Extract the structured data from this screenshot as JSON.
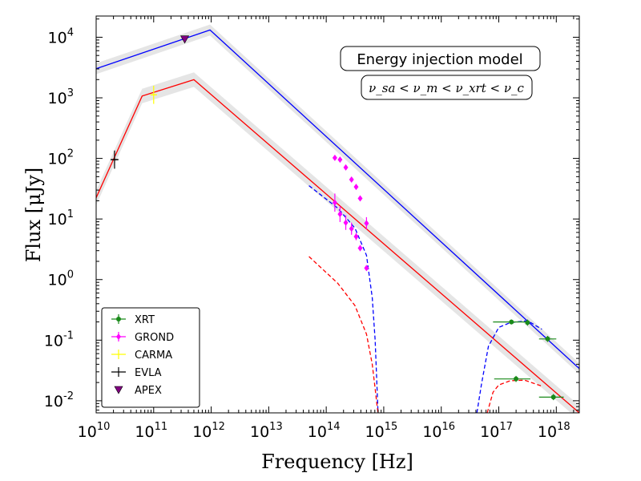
{
  "chart_data": {
    "type": "line",
    "title": "",
    "xlabel": "Frequency [Hz]",
    "ylabel": "Flux [μJy]",
    "xscale": "log",
    "yscale": "log",
    "xlim_log10": [
      10,
      18.4
    ],
    "ylim_log10": [
      -2.2,
      4.35
    ],
    "annotations": [
      {
        "text": "Energy injection model",
        "style": "boxed"
      },
      {
        "text": "ν_sa < ν_m < ν_xrt < ν_c",
        "style": "boxed-math"
      }
    ],
    "legend": {
      "position": "lower-left",
      "entries": [
        {
          "label": "XRT",
          "color": "#1a8a1a",
          "marker": "errorbar-circle"
        },
        {
          "label": "GROND",
          "color": "#ff00ff",
          "marker": "errorbar-diamond"
        },
        {
          "label": "CARMA",
          "color": "#ffff00",
          "marker": "errorbar-plus"
        },
        {
          "label": "EVLA",
          "color": "#000000",
          "marker": "errorbar-plus"
        },
        {
          "label": "APEX",
          "color": "#800080",
          "marker": "triangle-down"
        }
      ]
    },
    "series": [
      {
        "name": "blue model",
        "color": "#0000ff",
        "style": "solid",
        "x_log10": [
          10,
          11.98,
          18.4
        ],
        "y_log10": [
          3.48,
          4.12,
          -1.47
        ],
        "band": 0.09
      },
      {
        "name": "red model",
        "color": "#ff0000",
        "style": "solid",
        "x_log10": [
          10,
          10.8,
          11.7,
          18.4
        ],
        "y_log10": [
          1.35,
          3.03,
          3.3,
          -2.2
        ],
        "band": 0.12
      },
      {
        "name": "blue absorbed optical",
        "color": "#0000ff",
        "style": "dashed",
        "x_log10": [
          13.7,
          14.2,
          14.5,
          14.7,
          14.8,
          14.85,
          14.88,
          14.9
        ],
        "y_log10": [
          1.55,
          1.18,
          0.85,
          0.4,
          -0.3,
          -1.0,
          -1.7,
          -2.2
        ]
      },
      {
        "name": "red absorbed optical",
        "color": "#ff0000",
        "style": "dashed",
        "x_log10": [
          13.7,
          14.2,
          14.5,
          14.7,
          14.8,
          14.85,
          14.88,
          14.9
        ],
        "y_log10": [
          0.38,
          -0.06,
          -0.43,
          -0.9,
          -1.4,
          -1.8,
          -2.05,
          -2.2
        ]
      },
      {
        "name": "blue absorbed X-ray",
        "color": "#0000ff",
        "style": "dashed",
        "x_log10": [
          16.62,
          16.7,
          16.82,
          17.0,
          17.2,
          17.5,
          17.75
        ],
        "y_log10": [
          -2.2,
          -1.72,
          -1.1,
          -0.79,
          -0.71,
          -0.68,
          -0.82
        ]
      },
      {
        "name": "red absorbed X-ray",
        "color": "#ff0000",
        "style": "dashed",
        "x_log10": [
          16.8,
          16.9,
          17.0,
          17.2,
          17.45,
          17.75
        ],
        "y_log10": [
          -2.2,
          -1.86,
          -1.74,
          -1.67,
          -1.66,
          -1.76
        ]
      }
    ],
    "points": {
      "XRT": [
        {
          "x_log10": 17.22,
          "y_log10": -0.7,
          "xerr_log10": [
            0.32,
            0.28
          ],
          "yerr_log10": 0.04
        },
        {
          "x_log10": 17.5,
          "y_log10": -0.71,
          "xerr_log10": [
            0.0,
            0.0
          ],
          "yerr_log10": 0.05
        },
        {
          "x_log10": 17.85,
          "y_log10": -0.98,
          "xerr_log10": [
            0.15,
            0.15
          ],
          "yerr_log10": 0.05
        },
        {
          "x_log10": 17.3,
          "y_log10": -1.64,
          "xerr_log10": [
            0.38,
            0.25
          ],
          "yerr_log10": 0.05
        },
        {
          "x_log10": 17.95,
          "y_log10": -1.94,
          "xerr_log10": [
            0.25,
            0.18
          ],
          "yerr_log10": 0.05
        }
      ],
      "GROND": [
        {
          "x_log10": 14.15,
          "y_log10": 2.01,
          "yerr_log10": 0.03
        },
        {
          "x_log10": 14.24,
          "y_log10": 1.98,
          "yerr_log10": 0.03
        },
        {
          "x_log10": 14.34,
          "y_log10": 1.85,
          "yerr_log10": 0.03
        },
        {
          "x_log10": 14.44,
          "y_log10": 1.65,
          "yerr_log10": 0.03
        },
        {
          "x_log10": 14.52,
          "y_log10": 1.53,
          "yerr_log10": 0.03
        },
        {
          "x_log10": 14.59,
          "y_log10": 1.34,
          "yerr_log10": 0.03
        },
        {
          "x_log10": 14.15,
          "y_log10": 1.27,
          "yerr_log10": 0.15
        },
        {
          "x_log10": 14.24,
          "y_log10": 1.08,
          "yerr_log10": 0.13
        },
        {
          "x_log10": 14.34,
          "y_log10": 0.94,
          "yerr_log10": 0.12
        },
        {
          "x_log10": 14.44,
          "y_log10": 0.84,
          "yerr_log10": 0.1
        },
        {
          "x_log10": 14.52,
          "y_log10": 0.71,
          "yerr_log10": 0.06
        },
        {
          "x_log10": 14.59,
          "y_log10": 0.52,
          "yerr_log10": 0.05
        },
        {
          "x_log10": 14.7,
          "y_log10": 0.93,
          "yerr_log10": 0.1
        },
        {
          "x_log10": 14.7,
          "y_log10": 0.19,
          "yerr_log10": 0.04
        }
      ],
      "CARMA": [
        {
          "x_log10": 11.0,
          "y_log10": 3.05,
          "yerr_log10": 0.15
        }
      ],
      "EVLA": [
        {
          "x_log10": 10.32,
          "y_log10": 1.98,
          "yerr_log10": 0.15,
          "xerr_log10": [
            0.07,
            0.07
          ]
        }
      ],
      "APEX": [
        {
          "x_log10": 11.54,
          "y_log10": 3.97
        }
      ]
    },
    "x_ticks": [
      {
        "exp": 10,
        "base": "10",
        "sup": "10"
      },
      {
        "exp": 11,
        "base": "10",
        "sup": "11"
      },
      {
        "exp": 12,
        "base": "10",
        "sup": "12"
      },
      {
        "exp": 13,
        "base": "10",
        "sup": "13"
      },
      {
        "exp": 14,
        "base": "10",
        "sup": "14"
      },
      {
        "exp": 15,
        "base": "10",
        "sup": "15"
      },
      {
        "exp": 16,
        "base": "10",
        "sup": "16"
      },
      {
        "exp": 17,
        "base": "10",
        "sup": "17"
      },
      {
        "exp": 18,
        "base": "10",
        "sup": "18"
      }
    ],
    "y_ticks": [
      {
        "exp": -2,
        "base": "10",
        "sup": "-2"
      },
      {
        "exp": -1,
        "base": "10",
        "sup": "-1"
      },
      {
        "exp": 0,
        "base": "10",
        "sup": "0"
      },
      {
        "exp": 1,
        "base": "10",
        "sup": "1"
      },
      {
        "exp": 2,
        "base": "10",
        "sup": "2"
      },
      {
        "exp": 3,
        "base": "10",
        "sup": "3"
      },
      {
        "exp": 4,
        "base": "10",
        "sup": "4"
      }
    ]
  }
}
